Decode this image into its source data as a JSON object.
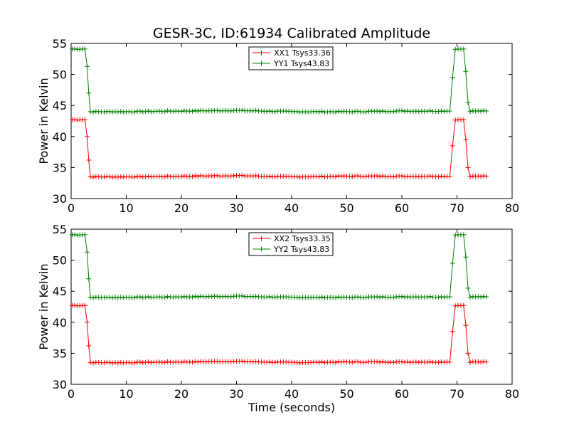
{
  "chart_data": [
    {
      "type": "line",
      "title": "GESR-3C, ID:61934 Calibrated Amplitude",
      "xlabel": "",
      "ylabel": "Power in Kelvin",
      "xlim": [
        0,
        80
      ],
      "ylim": [
        30,
        55
      ],
      "xticks": [
        "0",
        "10",
        "20",
        "30",
        "40",
        "50",
        "60",
        "70",
        "80"
      ],
      "yticks": [
        "30",
        "35",
        "40",
        "45",
        "50",
        "55"
      ],
      "legend_position": "top-center",
      "series": [
        {
          "name": "XX1 Tsys33.36",
          "color": "#ff0000",
          "points": [
            [
              0.2,
              42.7
            ],
            [
              2.5,
              42.7
            ],
            [
              2.9,
              40.0
            ],
            [
              3.2,
              36.2
            ],
            [
              3.5,
              33.5
            ],
            [
              10,
              33.5
            ],
            [
              20,
              33.6
            ],
            [
              30,
              33.7
            ],
            [
              40,
              33.5
            ],
            [
              50,
              33.6
            ],
            [
              60,
              33.6
            ],
            [
              68.7,
              33.6
            ],
            [
              69.2,
              38.5
            ],
            [
              69.7,
              42.7
            ],
            [
              71.2,
              42.7
            ],
            [
              71.6,
              39.5
            ],
            [
              72.0,
              35.0
            ],
            [
              72.4,
              33.6
            ],
            [
              75.3,
              33.6
            ]
          ]
        },
        {
          "name": "YY1 Tsys43.83",
          "color": "#008000",
          "points": [
            [
              0.2,
              54.1
            ],
            [
              2.5,
              54.1
            ],
            [
              2.9,
              51.3
            ],
            [
              3.2,
              47.0
            ],
            [
              3.5,
              44.0
            ],
            [
              10,
              44.0
            ],
            [
              20,
              44.1
            ],
            [
              30,
              44.2
            ],
            [
              40,
              44.0
            ],
            [
              50,
              44.0
            ],
            [
              60,
              44.1
            ],
            [
              68.7,
              44.1
            ],
            [
              69.2,
              49.5
            ],
            [
              69.7,
              54.1
            ],
            [
              71.2,
              54.1
            ],
            [
              71.6,
              50.5
            ],
            [
              72.0,
              45.5
            ],
            [
              72.4,
              44.1
            ],
            [
              75.3,
              44.1
            ]
          ]
        }
      ]
    },
    {
      "type": "line",
      "title": "",
      "xlabel": "Time (seconds)",
      "ylabel": "Power in Kelvin",
      "xlim": [
        0,
        80
      ],
      "ylim": [
        30,
        55
      ],
      "xticks": [
        "0",
        "10",
        "20",
        "30",
        "40",
        "50",
        "60",
        "70",
        "80"
      ],
      "yticks": [
        "30",
        "35",
        "40",
        "45",
        "50",
        "55"
      ],
      "legend_position": "top-center",
      "series": [
        {
          "name": "XX2 Tsys33.35",
          "color": "#ff0000",
          "points": [
            [
              0.2,
              42.7
            ],
            [
              2.5,
              42.7
            ],
            [
              2.9,
              40.0
            ],
            [
              3.2,
              36.2
            ],
            [
              3.5,
              33.5
            ],
            [
              10,
              33.5
            ],
            [
              20,
              33.6
            ],
            [
              30,
              33.7
            ],
            [
              40,
              33.5
            ],
            [
              50,
              33.6
            ],
            [
              60,
              33.6
            ],
            [
              68.7,
              33.6
            ],
            [
              69.2,
              38.5
            ],
            [
              69.7,
              42.7
            ],
            [
              71.2,
              42.7
            ],
            [
              71.6,
              39.5
            ],
            [
              72.0,
              35.0
            ],
            [
              72.4,
              33.6
            ],
            [
              75.3,
              33.6
            ]
          ]
        },
        {
          "name": "YY2 Tsys43.83",
          "color": "#008000",
          "points": [
            [
              0.2,
              54.1
            ],
            [
              2.5,
              54.1
            ],
            [
              2.9,
              51.3
            ],
            [
              3.2,
              47.0
            ],
            [
              3.5,
              44.0
            ],
            [
              10,
              44.0
            ],
            [
              20,
              44.1
            ],
            [
              30,
              44.2
            ],
            [
              40,
              44.0
            ],
            [
              50,
              44.0
            ],
            [
              60,
              44.1
            ],
            [
              68.7,
              44.1
            ],
            [
              69.2,
              49.5
            ],
            [
              69.7,
              54.1
            ],
            [
              71.2,
              54.1
            ],
            [
              71.6,
              50.5
            ],
            [
              72.0,
              45.5
            ],
            [
              72.4,
              44.1
            ],
            [
              75.3,
              44.1
            ]
          ]
        }
      ]
    }
  ]
}
